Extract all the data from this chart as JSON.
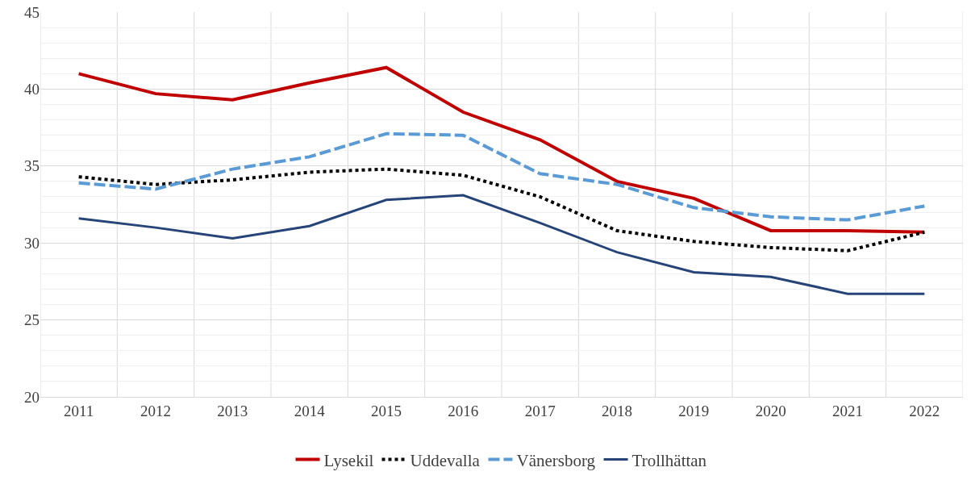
{
  "chart_data": {
    "type": "line",
    "categories": [
      "2011",
      "2012",
      "2013",
      "2014",
      "2015",
      "2016",
      "2017",
      "2018",
      "2019",
      "2020",
      "2021",
      "2022"
    ],
    "series": [
      {
        "name": "Lysekil",
        "color": "#c00000",
        "line_style": "solid",
        "values": [
          41.0,
          39.7,
          39.3,
          40.4,
          41.4,
          38.5,
          36.7,
          34.0,
          32.9,
          30.8,
          30.8,
          30.7
        ]
      },
      {
        "name": "Uddevalla",
        "color": "#000000",
        "line_style": "dotted",
        "values": [
          34.3,
          33.8,
          34.1,
          34.6,
          34.8,
          34.4,
          33.0,
          30.8,
          30.1,
          29.7,
          29.5,
          30.7
        ]
      },
      {
        "name": "Vänersborg",
        "color": "#5b9bd5",
        "line_style": "dashed",
        "values": [
          33.9,
          33.5,
          34.8,
          35.6,
          37.1,
          37.0,
          34.5,
          33.8,
          32.3,
          31.7,
          31.5,
          32.4
        ]
      },
      {
        "name": "Trollhättan",
        "color": "#264478",
        "line_style": "solid",
        "values": [
          31.6,
          31.0,
          30.3,
          31.1,
          32.8,
          33.1,
          31.3,
          29.4,
          28.1,
          27.8,
          26.7,
          26.7
        ]
      }
    ],
    "ylim": [
      20,
      45
    ],
    "yticks": [
      20,
      25,
      30,
      35,
      40,
      45
    ],
    "grid": true,
    "legend": "bottom",
    "marker": "none"
  }
}
